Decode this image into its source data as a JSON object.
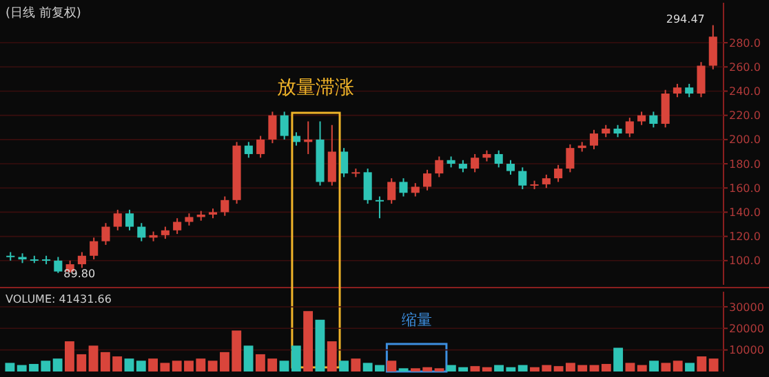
{
  "chart_data": [
    {
      "type": "candlestick",
      "title": "(日线 前复权)",
      "categories": [
        null,
        null,
        null,
        null,
        null,
        null,
        null,
        null,
        null,
        null,
        null,
        null,
        null,
        null,
        null,
        null,
        null,
        null,
        null,
        null,
        null,
        null,
        null,
        null,
        null,
        null,
        null,
        null,
        null,
        null,
        null,
        null,
        null,
        null,
        null,
        null,
        null,
        null,
        null,
        null,
        null,
        null,
        null,
        null,
        null,
        null,
        null,
        null,
        null,
        null,
        null,
        null,
        null,
        null,
        null,
        null,
        null,
        null,
        null,
        null
      ],
      "ohlc": [
        [
          104,
          107,
          100,
          103
        ],
        [
          103,
          106,
          98,
          101
        ],
        [
          101,
          104,
          98,
          101
        ],
        [
          101,
          104,
          97,
          100
        ],
        [
          100,
          103,
          89.8,
          91
        ],
        [
          91,
          100,
          90,
          97
        ],
        [
          97,
          107,
          94,
          104
        ],
        [
          104,
          119,
          101,
          116
        ],
        [
          116,
          131,
          113,
          128
        ],
        [
          128,
          142,
          125,
          139
        ],
        [
          139,
          142,
          125,
          128
        ],
        [
          128,
          131,
          116,
          119
        ],
        [
          119,
          124,
          116,
          121
        ],
        [
          121,
          128,
          118,
          125
        ],
        [
          125,
          135,
          122,
          132
        ],
        [
          132,
          139,
          129,
          136
        ],
        [
          136,
          141,
          133,
          138
        ],
        [
          138,
          143,
          135,
          140
        ],
        [
          140,
          153,
          137,
          150
        ],
        [
          150,
          198,
          147,
          195
        ],
        [
          195,
          198,
          185,
          188
        ],
        [
          188,
          203,
          185,
          200
        ],
        [
          200,
          223,
          197,
          220
        ],
        [
          220,
          223,
          200,
          203
        ],
        [
          203,
          206,
          195,
          198
        ],
        [
          198,
          215,
          188,
          200
        ],
        [
          200,
          215,
          162,
          165
        ],
        [
          165,
          212,
          162,
          190
        ],
        [
          190,
          193,
          169,
          172
        ],
        [
          172,
          176,
          169,
          173
        ],
        [
          173,
          176,
          147,
          150
        ],
        [
          150,
          153,
          135,
          150
        ],
        [
          150,
          168,
          147,
          165
        ],
        [
          165,
          168,
          153,
          156
        ],
        [
          156,
          164,
          153,
          161
        ],
        [
          161,
          175,
          158,
          172
        ],
        [
          172,
          186,
          169,
          183
        ],
        [
          183,
          186,
          177,
          180
        ],
        [
          180,
          183,
          173,
          176
        ],
        [
          176,
          188,
          173,
          185
        ],
        [
          185,
          191,
          182,
          188
        ],
        [
          188,
          191,
          177,
          180
        ],
        [
          180,
          183,
          171,
          174
        ],
        [
          174,
          177,
          159,
          162
        ],
        [
          162,
          166,
          159,
          163
        ],
        [
          163,
          171,
          160,
          168
        ],
        [
          168,
          179,
          165,
          176
        ],
        [
          176,
          196,
          173,
          193
        ],
        [
          193,
          198,
          190,
          195
        ],
        [
          195,
          208,
          192,
          205
        ],
        [
          205,
          212,
          202,
          209
        ],
        [
          209,
          212,
          202,
          205
        ],
        [
          205,
          218,
          202,
          215
        ],
        [
          215,
          223,
          212,
          220
        ],
        [
          220,
          223,
          210,
          213
        ],
        [
          213,
          241,
          210,
          238
        ],
        [
          238,
          246,
          235,
          243
        ],
        [
          243,
          246,
          235,
          238
        ],
        [
          238,
          264,
          235,
          261
        ],
        [
          261,
          294.47,
          258,
          285
        ]
      ],
      "colors": [
        "#2ec4b6",
        "#2ec4b6",
        "#2ec4b6",
        "#2ec4b6",
        "#2ec4b6",
        "#d9453b",
        "#d9453b",
        "#d9453b",
        "#d9453b",
        "#d9453b",
        "#2ec4b6",
        "#2ec4b6",
        "#d9453b",
        "#d9453b",
        "#d9453b",
        "#d9453b",
        "#d9453b",
        "#d9453b",
        "#d9453b",
        "#d9453b",
        "#2ec4b6",
        "#d9453b",
        "#d9453b",
        "#2ec4b6",
        "#2ec4b6",
        "#d9453b",
        "#2ec4b6",
        "#d9453b",
        "#2ec4b6",
        "#d9453b",
        "#2ec4b6",
        "#2ec4b6",
        "#d9453b",
        "#2ec4b6",
        "#d9453b",
        "#d9453b",
        "#d9453b",
        "#2ec4b6",
        "#2ec4b6",
        "#d9453b",
        "#d9453b",
        "#2ec4b6",
        "#2ec4b6",
        "#2ec4b6",
        "#d9453b",
        "#d9453b",
        "#d9453b",
        "#d9453b",
        "#d9453b",
        "#d9453b",
        "#d9453b",
        "#2ec4b6",
        "#d9453b",
        "#d9453b",
        "#2ec4b6",
        "#d9453b",
        "#d9453b",
        "#2ec4b6",
        "#d9453b",
        "#d9453b"
      ],
      "ylim": [
        80,
        313
      ],
      "yticks": [
        {
          "value": 100,
          "label": "100.0"
        },
        {
          "value": 120,
          "label": "120.0"
        },
        {
          "value": 140,
          "label": "140.0"
        },
        {
          "value": 160,
          "label": "160.0"
        },
        {
          "value": 180,
          "label": "180.0"
        },
        {
          "value": 200,
          "label": "200.0"
        },
        {
          "value": 220,
          "label": "220.0"
        },
        {
          "value": 240,
          "label": "240.0"
        },
        {
          "value": 260,
          "label": "260.0"
        },
        {
          "value": 280,
          "label": "280.0"
        }
      ],
      "grid": "y",
      "tick_labels": "y",
      "annotations": [
        "294.47",
        "89.80",
        "放量滞涨"
      ]
    },
    {
      "type": "bar",
      "title": "VOLUME: 41431.66",
      "categories": [
        null,
        null,
        null,
        null,
        null,
        null,
        null,
        null,
        null,
        null,
        null,
        null,
        null,
        null,
        null,
        null,
        null,
        null,
        null,
        null,
        null,
        null,
        null,
        null,
        null,
        null,
        null,
        null,
        null,
        null,
        null,
        null,
        null,
        null,
        null,
        null,
        null,
        null,
        null,
        null,
        null,
        null,
        null,
        null,
        null,
        null,
        null,
        null,
        null,
        null,
        null,
        null,
        null,
        null,
        null,
        null,
        null,
        null,
        null,
        null
      ],
      "values": [
        4000,
        3000,
        3500,
        5000,
        6000,
        14000,
        8000,
        12000,
        9000,
        7000,
        6000,
        5000,
        6000,
        4000,
        5000,
        5000,
        6000,
        5000,
        9000,
        19000,
        12000,
        8000,
        6000,
        5000,
        12000,
        28000,
        24000,
        14000,
        5000,
        6000,
        4000,
        3000,
        5000,
        1500,
        1500,
        2000,
        1500,
        3000,
        2000,
        2500,
        2000,
        3000,
        2000,
        3000,
        2000,
        3000,
        2500,
        4000,
        3000,
        3000,
        3500,
        11000,
        4000,
        3000,
        5000,
        4000,
        5000,
        4000,
        7000,
        6000
      ],
      "colors": [
        "#2ec4b6",
        "#2ec4b6",
        "#2ec4b6",
        "#2ec4b6",
        "#2ec4b6",
        "#d9453b",
        "#d9453b",
        "#d9453b",
        "#d9453b",
        "#d9453b",
        "#2ec4b6",
        "#2ec4b6",
        "#d9453b",
        "#d9453b",
        "#d9453b",
        "#d9453b",
        "#d9453b",
        "#d9453b",
        "#d9453b",
        "#d9453b",
        "#2ec4b6",
        "#d9453b",
        "#d9453b",
        "#2ec4b6",
        "#2ec4b6",
        "#d9453b",
        "#2ec4b6",
        "#d9453b",
        "#2ec4b6",
        "#d9453b",
        "#2ec4b6",
        "#2ec4b6",
        "#d9453b",
        "#2ec4b6",
        "#d9453b",
        "#d9453b",
        "#d9453b",
        "#2ec4b6",
        "#2ec4b6",
        "#d9453b",
        "#d9453b",
        "#2ec4b6",
        "#2ec4b6",
        "#2ec4b6",
        "#d9453b",
        "#d9453b",
        "#d9453b",
        "#d9453b",
        "#d9453b",
        "#d9453b",
        "#d9453b",
        "#2ec4b6",
        "#d9453b",
        "#d9453b",
        "#2ec4b6",
        "#d9453b",
        "#d9453b",
        "#2ec4b6",
        "#d9453b",
        "#d9453b"
      ],
      "ylim": [
        0,
        37000
      ],
      "yticks": [
        10000,
        20000,
        30000
      ],
      "grid": "y",
      "tick_labels": "y",
      "annotations": [
        "缩量"
      ]
    }
  ]
}
